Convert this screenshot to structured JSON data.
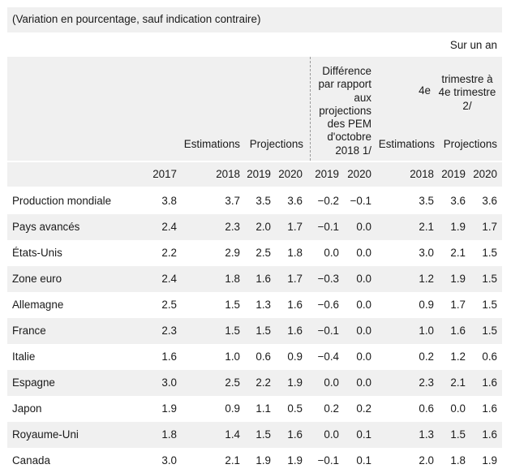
{
  "subtitle": "(Variation en pourcentage, sauf indication contraire)",
  "header": {
    "year_on_year": "Sur un an",
    "difference": "Différence par rapport aux projections des PEM d'octobre 2018 1/",
    "q4_label": "4e",
    "q4_trimestre": "trimestre à 4e trimestre 2/",
    "estimations": "Estimations",
    "projections": "Projections",
    "q4_estimations": "Estimations",
    "q4_projections": "Projections"
  },
  "years": [
    "2017",
    "2018",
    "2019",
    "2020",
    "2019",
    "2020",
    "2018",
    "2019",
    "2020"
  ],
  "rows": [
    {
      "label": "Production mondiale",
      "values": [
        "3.8",
        "3.7",
        "3.5",
        "3.6",
        "−0.2",
        "−0.1",
        "3.5",
        "3.6",
        "3.6"
      ]
    },
    {
      "label": "Pays avancés",
      "values": [
        "2.4",
        "2.3",
        "2.0",
        "1.7",
        "−0.1",
        "0.0",
        "2.1",
        "1.9",
        "1.7"
      ]
    },
    {
      "label": "États-Unis",
      "values": [
        "2.2",
        "2.9",
        "2.5",
        "1.8",
        "0.0",
        "0.0",
        "3.0",
        "2.1",
        "1.5"
      ]
    },
    {
      "label": "Zone euro",
      "values": [
        "2.4",
        "1.8",
        "1.6",
        "1.7",
        "−0.3",
        "0.0",
        "1.2",
        "1.9",
        "1.5"
      ]
    },
    {
      "label": "Allemagne",
      "values": [
        "2.5",
        "1.5",
        "1.3",
        "1.6",
        "−0.6",
        "0.0",
        "0.9",
        "1.7",
        "1.5"
      ]
    },
    {
      "label": "France",
      "values": [
        "2.3",
        "1.5",
        "1.5",
        "1.6",
        "−0.1",
        "0.0",
        "1.0",
        "1.6",
        "1.5"
      ]
    },
    {
      "label": "Italie",
      "values": [
        "1.6",
        "1.0",
        "0.6",
        "0.9",
        "−0.4",
        "0.0",
        "0.2",
        "1.2",
        "0.6"
      ]
    },
    {
      "label": "Espagne",
      "values": [
        "3.0",
        "2.5",
        "2.2",
        "1.9",
        "0.0",
        "0.0",
        "2.3",
        "2.1",
        "1.6"
      ]
    },
    {
      "label": "Japon",
      "values": [
        "1.9",
        "0.9",
        "1.1",
        "0.5",
        "0.2",
        "0.2",
        "0.6",
        "0.0",
        "1.6"
      ]
    },
    {
      "label": "Royaume-Uni",
      "values": [
        "1.8",
        "1.4",
        "1.5",
        "1.6",
        "0.0",
        "0.1",
        "1.3",
        "1.5",
        "1.6"
      ]
    },
    {
      "label": "Canada",
      "values": [
        "3.0",
        "2.1",
        "1.9",
        "1.9",
        "−0.1",
        "0.1",
        "2.0",
        "1.8",
        "1.9"
      ]
    }
  ]
}
